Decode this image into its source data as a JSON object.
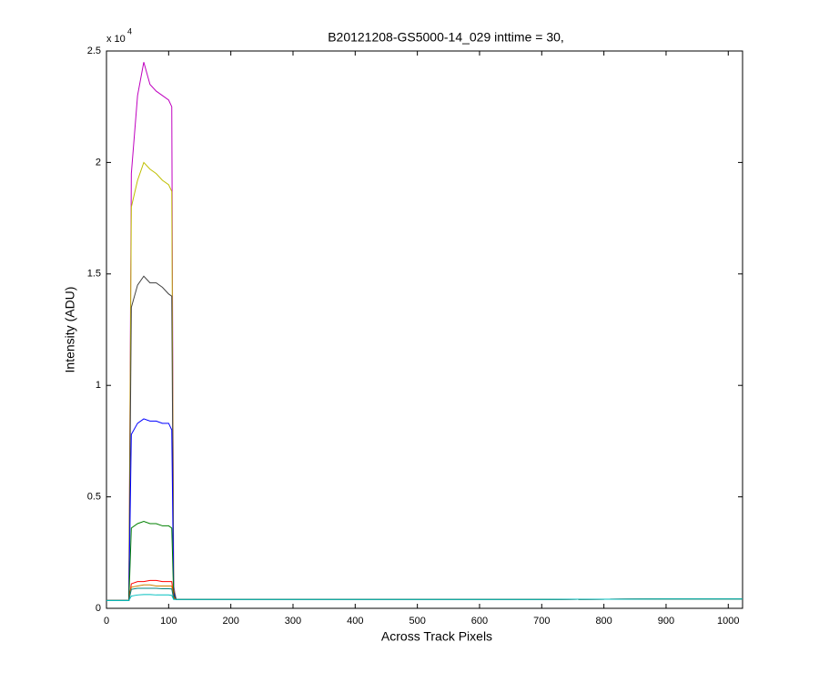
{
  "chart_data": {
    "type": "line",
    "title": "B20121208-GS5000-14_029 inttime = 30,",
    "x_label": "Across Track Pixels",
    "y_label": "Intensity (ADU)",
    "y_multiplier": {
      "base": "x 10",
      "exponent": "4"
    },
    "xlim": [
      0,
      1023
    ],
    "ylim": [
      0,
      25000
    ],
    "xticks": [
      0,
      100,
      200,
      300,
      400,
      500,
      600,
      700,
      800,
      900,
      1000
    ],
    "yticks": [
      0,
      {
        "value": 5000,
        "label": "0.5"
      },
      {
        "value": 10000,
        "label": "1"
      },
      {
        "value": 15000,
        "label": "1.5"
      },
      {
        "value": 20000,
        "label": "2"
      },
      {
        "value": 25000,
        "label": "2.5"
      }
    ],
    "x": [
      0,
      30,
      36,
      40,
      50,
      60,
      70,
      80,
      90,
      100,
      105,
      108,
      112,
      150,
      300,
      500,
      700,
      900,
      1023
    ],
    "series": [
      {
        "color": "#bf00bf",
        "values": [
          350,
          350,
          350,
          19500,
          23000,
          24500,
          23500,
          23200,
          23000,
          22800,
          22500,
          1000,
          400,
          400,
          400,
          400,
          400,
          420,
          420
        ]
      },
      {
        "color": "#bfbf00",
        "values": [
          350,
          350,
          350,
          18000,
          19200,
          20000,
          19700,
          19500,
          19200,
          19000,
          18700,
          900,
          400,
          400,
          400,
          400,
          400,
          420,
          420
        ]
      },
      {
        "color": "#404040",
        "values": [
          350,
          350,
          350,
          13500,
          14500,
          14900,
          14600,
          14600,
          14400,
          14100,
          14000,
          800,
          400,
          400,
          400,
          400,
          400,
          420,
          420
        ]
      },
      {
        "color": "#0000ff",
        "values": [
          350,
          350,
          350,
          7800,
          8300,
          8500,
          8400,
          8400,
          8300,
          8300,
          8000,
          700,
          400,
          400,
          400,
          400,
          400,
          420,
          420
        ]
      },
      {
        "color": "#008000",
        "values": [
          350,
          350,
          350,
          3600,
          3800,
          3900,
          3800,
          3800,
          3700,
          3700,
          3600,
          600,
          400,
          400,
          400,
          400,
          400,
          420,
          420
        ]
      },
      {
        "color": "#ff0000",
        "values": [
          350,
          350,
          350,
          1100,
          1200,
          1200,
          1250,
          1250,
          1200,
          1200,
          1200,
          500,
          400,
          400,
          400,
          400,
          400,
          420,
          420
        ]
      },
      {
        "color": "#d08000",
        "values": [
          350,
          350,
          350,
          950,
          1000,
          1050,
          1050,
          1000,
          1000,
          1000,
          1000,
          450,
          400,
          400,
          400,
          400,
          400,
          420,
          420
        ]
      },
      {
        "color": "#008080",
        "values": [
          350,
          350,
          350,
          850,
          900,
          900,
          900,
          900,
          880,
          880,
          870,
          420,
          400,
          400,
          400,
          400,
          400,
          420,
          420
        ]
      },
      {
        "color": "#00bfbf",
        "values": [
          350,
          350,
          350,
          550,
          600,
          620,
          620,
          600,
          600,
          600,
          580,
          400,
          400,
          400,
          400,
          400,
          400,
          420,
          420
        ]
      }
    ]
  }
}
